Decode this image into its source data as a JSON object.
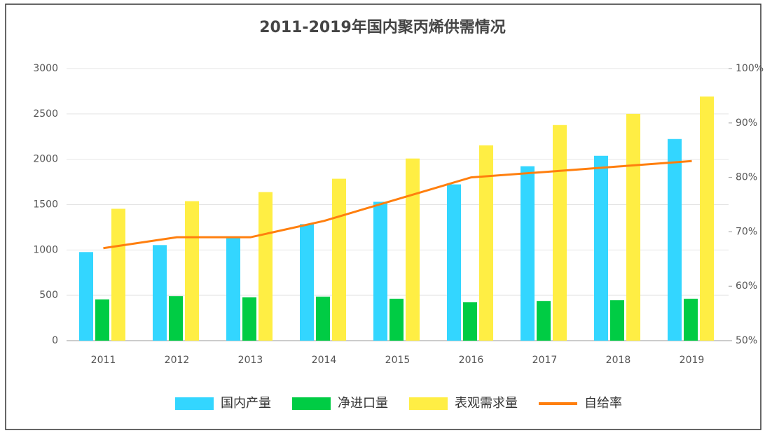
{
  "chart_data": {
    "type": "bar",
    "title": "2011-2019年国内聚丙烯供需情况",
    "categories": [
      "2011",
      "2012",
      "2013",
      "2014",
      "2015",
      "2016",
      "2017",
      "2018",
      "2019"
    ],
    "series": [
      {
        "name": "国内产量",
        "color": "#33d6ff",
        "values": [
          977,
          1054,
          1131,
          1285,
          1531,
          1723,
          1923,
          2038,
          2223
        ]
      },
      {
        "name": "净进口量",
        "color": "#00cc44",
        "values": [
          454,
          492,
          477,
          485,
          462,
          423,
          438,
          446,
          462
        ]
      },
      {
        "name": "表观需求量",
        "color": "#ffee44",
        "values": [
          1454,
          1538,
          1638,
          1785,
          2008,
          2154,
          2377,
          2500,
          2692
        ]
      },
      {
        "name": "自给率",
        "color": "#ff7f0e",
        "axis": "y2",
        "type": "line",
        "values": [
          67,
          69,
          69,
          72,
          76,
          80,
          81,
          82,
          83
        ]
      }
    ],
    "ylim": [
      0,
      3000
    ],
    "yticks": [
      0,
      500,
      1000,
      1500,
      2000,
      2500,
      3000
    ],
    "y2lim": [
      50,
      100
    ],
    "y2ticks": [
      {
        "value": 50,
        "label": "50%"
      },
      {
        "value": 60,
        "label": "60%"
      },
      {
        "value": 70,
        "label": "70%"
      },
      {
        "value": 80,
        "label": "80%"
      },
      {
        "value": 90,
        "label": "90%"
      },
      {
        "value": 100,
        "label": "100%"
      }
    ],
    "grid": true
  }
}
